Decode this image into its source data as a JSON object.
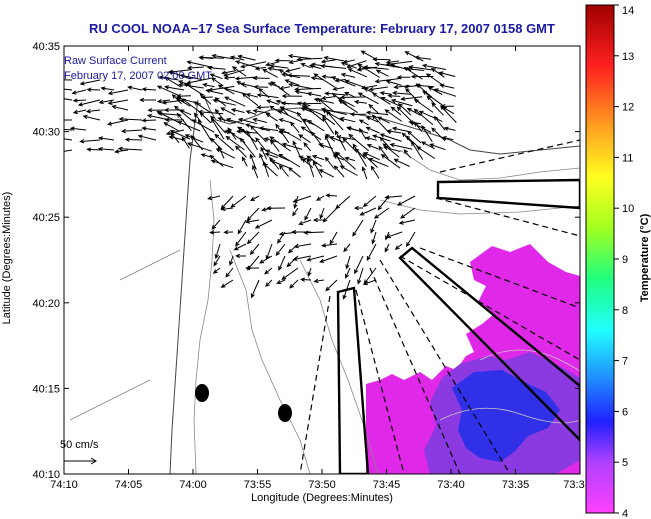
{
  "title": "RU COOL  NOAA−17  Sea Surface Temperature:  February 17, 2007 0158 GMT",
  "annotation": {
    "line1": "Raw Surface Current",
    "line2": "February 17, 2007 02:00 GMT"
  },
  "scale_label": "50 cm/s",
  "axes": {
    "xlabel": "Longitude (Degrees:Minutes)",
    "ylabel": "Latitude (Degrees:Minutes)",
    "xticks": [
      "74:10",
      "74:05",
      "74:00",
      "73:55",
      "73:50",
      "73:45",
      "73:40",
      "73:35",
      "73:3"
    ],
    "yticks": [
      "40:35",
      "40:30",
      "40:25",
      "40:20",
      "40:15",
      "40:10"
    ]
  },
  "colorbar": {
    "label": "Temperature (°C)",
    "ticks": [
      "14",
      "13",
      "12",
      "11",
      "10",
      "9",
      "8",
      "7",
      "6",
      "5",
      "4"
    ],
    "min": 4,
    "max": 14,
    "colors": [
      "#ff40ff",
      "#b040ff",
      "#2020ff",
      "#20a0ff",
      "#20ffff",
      "#20ff80",
      "#a0ff20",
      "#ffff20",
      "#ffa020",
      "#ff2020",
      "#a00000"
    ]
  },
  "colors": {
    "title": "#1a1aa6",
    "sst_warm": "#e028e8",
    "sst_cold": "#3030e8",
    "sst_mid": "#8a3ae0"
  }
}
